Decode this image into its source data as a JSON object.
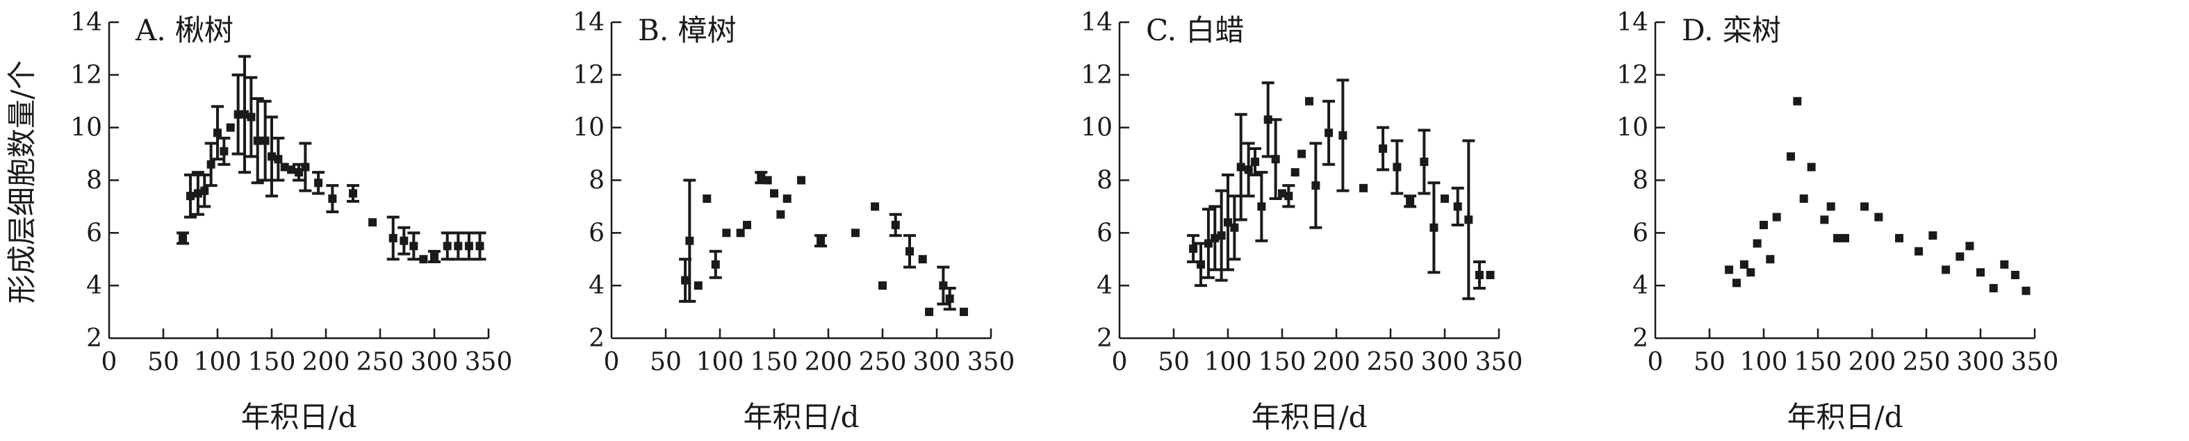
{
  "chart_data": [
    {
      "type": "scatter",
      "title": "A. 楸树",
      "xlabel": "年积日/d",
      "ylabel": "形成层细胞数量/个",
      "xlim": [
        0,
        350
      ],
      "ylim": [
        2,
        14
      ],
      "xticks": [
        0,
        50,
        100,
        150,
        200,
        250,
        300,
        350
      ],
      "yticks": [
        2,
        4,
        6,
        8,
        10,
        12,
        14
      ],
      "grid": false,
      "series": [
        {
          "x": [
            68,
            75,
            82,
            88,
            94,
            100,
            106,
            112,
            119,
            125,
            131,
            137,
            144,
            150,
            156,
            162,
            168,
            175,
            181,
            193,
            206,
            225,
            243,
            262,
            272,
            281,
            290,
            300,
            312,
            322,
            332,
            342
          ],
          "y": [
            5.8,
            7.4,
            7.5,
            7.6,
            8.6,
            9.8,
            9.1,
            10.0,
            10.5,
            10.5,
            10.4,
            9.5,
            9.5,
            8.9,
            8.8,
            8.5,
            8.4,
            8.3,
            8.5,
            7.9,
            7.3,
            7.5,
            6.4,
            5.8,
            5.7,
            5.5,
            5.0,
            5.1,
            5.5,
            5.5,
            5.5,
            5.5
          ],
          "err": [
            0.2,
            0.8,
            0.8,
            0.6,
            0.8,
            1.0,
            0.5,
            0.0,
            1.5,
            2.2,
            1.5,
            1.6,
            1.5,
            1.5,
            0.8,
            0.0,
            0.0,
            0.3,
            0.9,
            0.4,
            0.5,
            0.3,
            0.0,
            0.8,
            0.5,
            0.5,
            0.0,
            0.2,
            0.5,
            0.5,
            0.5,
            0.5
          ]
        }
      ]
    },
    {
      "type": "scatter",
      "title": "B. 樟树",
      "xlabel": "年积日/d",
      "xlim": [
        0,
        350
      ],
      "ylim": [
        2,
        14
      ],
      "xticks": [
        0,
        50,
        100,
        150,
        200,
        250,
        300,
        350
      ],
      "yticks": [
        2,
        4,
        6,
        8,
        10,
        12,
        14
      ],
      "grid": false,
      "series": [
        {
          "x": [
            68,
            72,
            80,
            88,
            96,
            106,
            119,
            125,
            138,
            144,
            150,
            156,
            162,
            175,
            193,
            225,
            243,
            250,
            262,
            275,
            287,
            293,
            306,
            312,
            325
          ],
          "y": [
            4.2,
            5.7,
            4.0,
            7.3,
            4.8,
            6.0,
            6.0,
            6.3,
            8.1,
            8.0,
            7.5,
            6.7,
            7.3,
            8.0,
            5.7,
            6.0,
            7.0,
            4.0,
            6.3,
            5.3,
            5.0,
            3.0,
            4.0,
            3.5,
            3.0
          ],
          "err": [
            0.8,
            2.3,
            0.0,
            0.0,
            0.5,
            0.0,
            0.0,
            0.0,
            0.2,
            0.0,
            0.0,
            0.0,
            0.0,
            0.0,
            0.2,
            0.0,
            0.0,
            0.0,
            0.4,
            0.6,
            0.0,
            0.0,
            0.7,
            0.4,
            0.0
          ]
        }
      ]
    },
    {
      "type": "scatter",
      "title": "C. 白蜡",
      "xlabel": "年积日/d",
      "xlim": [
        0,
        350
      ],
      "ylim": [
        2,
        14
      ],
      "xticks": [
        0,
        50,
        100,
        150,
        200,
        250,
        300,
        350
      ],
      "yticks": [
        2,
        4,
        6,
        8,
        10,
        12,
        14
      ],
      "grid": false,
      "series": [
        {
          "x": [
            68,
            75,
            82,
            88,
            94,
            100,
            106,
            112,
            119,
            125,
            131,
            137,
            144,
            150,
            156,
            162,
            168,
            175,
            181,
            193,
            206,
            225,
            243,
            256,
            268,
            281,
            290,
            300,
            312,
            322,
            332,
            342
          ],
          "y": [
            5.4,
            4.8,
            5.6,
            5.8,
            5.9,
            6.4,
            6.2,
            8.5,
            8.4,
            8.7,
            7.0,
            10.3,
            8.8,
            7.5,
            7.4,
            8.3,
            9.0,
            11.0,
            7.8,
            9.8,
            9.7,
            7.7,
            9.2,
            8.5,
            7.2,
            8.7,
            6.2,
            7.3,
            7.0,
            6.5,
            4.4,
            4.4
          ],
          "err": [
            0.5,
            0.8,
            1.3,
            1.2,
            1.7,
            1.8,
            1.2,
            2.0,
            1.0,
            0.5,
            1.3,
            1.4,
            1.5,
            0.0,
            0.4,
            0.0,
            0.0,
            0.0,
            1.6,
            1.2,
            2.1,
            0.0,
            0.8,
            1.0,
            0.2,
            1.2,
            1.7,
            0.0,
            0.7,
            3.0,
            0.5,
            0.0
          ]
        }
      ]
    },
    {
      "type": "scatter",
      "title": "D. 栾树",
      "xlabel": "年积日/d",
      "xlim": [
        0,
        350
      ],
      "ylim": [
        2,
        14
      ],
      "xticks": [
        0,
        50,
        100,
        150,
        200,
        250,
        300,
        350
      ],
      "yticks": [
        2,
        4,
        6,
        8,
        10,
        12,
        14
      ],
      "grid": false,
      "series": [
        {
          "x": [
            68,
            75,
            82,
            88,
            94,
            100,
            106,
            112,
            125,
            131,
            137,
            144,
            156,
            162,
            168,
            175,
            193,
            206,
            225,
            243,
            256,
            268,
            281,
            290,
            300,
            312,
            322,
            332,
            342
          ],
          "y": [
            4.6,
            4.1,
            4.8,
            4.5,
            5.6,
            6.3,
            5.0,
            6.6,
            8.9,
            11.0,
            7.3,
            8.5,
            6.5,
            7.0,
            5.8,
            5.8,
            7.0,
            6.6,
            5.8,
            5.3,
            5.9,
            4.6,
            5.1,
            5.5,
            4.5,
            3.9,
            4.8,
            4.4,
            3.8
          ]
        }
      ]
    }
  ]
}
